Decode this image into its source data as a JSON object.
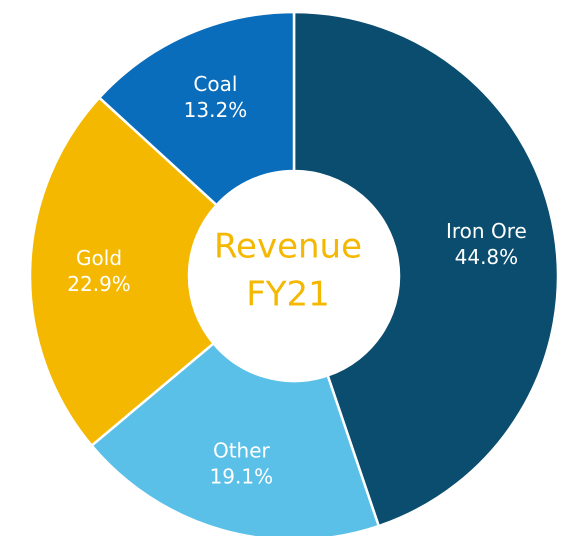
{
  "chart_data": {
    "type": "donut",
    "title_lines": [
      "Revenue",
      "FY21"
    ],
    "categories": [
      "Iron Ore",
      "Other",
      "Gold",
      "Coal"
    ],
    "values": [
      44.8,
      19.1,
      22.9,
      13.2
    ],
    "value_labels": [
      "44.8%",
      "19.1%",
      "22.9%",
      "13.2%"
    ],
    "colors": [
      "#0a4d6e",
      "#5bc0e8",
      "#f5b800",
      "#0a6dbb"
    ],
    "title_color": "#f5b800"
  }
}
